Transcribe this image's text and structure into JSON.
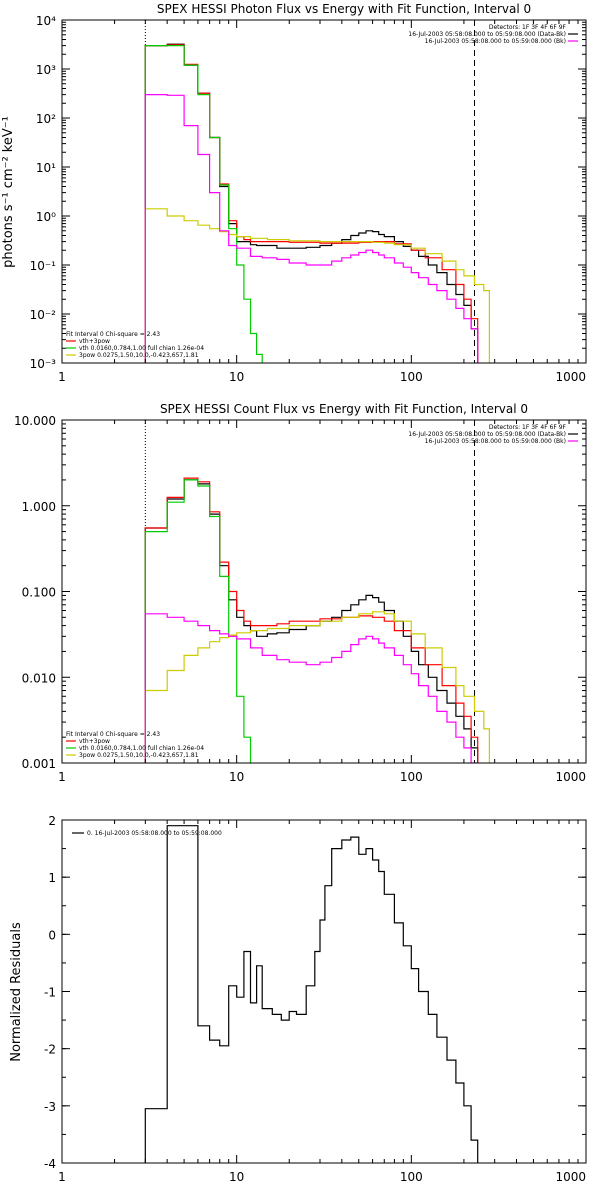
{
  "chart_data": [
    {
      "type": "line",
      "title": "SPEX HESSI Photon Flux vs Energy with Fit Function, Interval 0",
      "xlabel": "",
      "ylabel": "photons s⁻¹ cm⁻² keV⁻¹",
      "xscale": "log",
      "yscale": "log",
      "xlim": [
        1,
        1000
      ],
      "ylim": [
        0.001,
        10000
      ],
      "x_ticks": [
        1,
        10,
        100,
        1000
      ],
      "x_tick_labels": [
        "1",
        "10",
        "100",
        "1000"
      ],
      "y_ticks": [
        0.001,
        0.01,
        0.1,
        1,
        10,
        100,
        1000,
        10000
      ],
      "y_tick_labels": [
        "10⁻³",
        "10⁻²",
        "10⁻¹",
        "10⁰",
        "10¹",
        "10²",
        "10³",
        "10⁴"
      ],
      "vlines": [
        {
          "x": 3,
          "style": "dotted",
          "color": "#000000"
        },
        {
          "x": 230,
          "style": "dashed",
          "color": "#000000"
        }
      ],
      "legend_top_right": [
        {
          "text": "Detectors: 1F 3F 4F 6F 9F",
          "color": "#000000"
        },
        {
          "text": "16-Jul-2003 05:58:08.000 to 05:59:08.000 (Data-Bk)",
          "color": "#000000"
        },
        {
          "text": "16-Jul-2003 05:58:08.000 to 05:59:08.000 (Bk)",
          "color": "#ff00ff"
        }
      ],
      "legend_bottom_left": [
        {
          "text": "Fit Interval 0   Chi-square = 2.43",
          "color": "#000000"
        },
        {
          "text": "vth+3pow",
          "color": "#ff0000"
        },
        {
          "text": "vth 0.0160,0.784,1.00  full chian 1.26e-04",
          "color": "#00cc00"
        },
        {
          "text": "3pow 0.0275,1.50,10.0,-0.423,657,1.81",
          "color": "#cccc00"
        }
      ],
      "series": [
        {
          "name": "Data-Bk",
          "color": "#000000",
          "x": [
            3,
            4,
            5,
            6,
            7,
            8,
            9,
            10,
            11,
            12,
            13,
            15,
            17,
            20,
            25,
            30,
            35,
            40,
            45,
            50,
            55,
            60,
            65,
            70,
            80,
            90,
            100,
            110,
            125,
            140,
            160,
            180,
            200,
            220,
            240
          ],
          "y": [
            3000,
            3200,
            1200,
            320,
            40,
            4,
            0.7,
            0.3,
            0.3,
            0.26,
            0.25,
            0.25,
            0.22,
            0.22,
            0.23,
            0.25,
            0.28,
            0.33,
            0.4,
            0.45,
            0.5,
            0.48,
            0.42,
            0.38,
            0.3,
            0.24,
            0.2,
            0.15,
            0.1,
            0.07,
            0.04,
            0.025,
            0.015,
            0.005,
            0.001
          ]
        },
        {
          "name": "vth+3pow",
          "color": "#ff0000",
          "x": [
            3,
            4,
            5,
            6,
            7,
            8,
            9,
            10,
            11,
            12,
            14,
            17,
            20,
            30,
            40,
            50,
            60,
            70,
            80,
            100,
            120,
            150,
            180,
            200,
            220,
            240
          ],
          "y": [
            3000,
            3100,
            1250,
            320,
            40,
            4.5,
            0.8,
            0.38,
            0.33,
            0.3,
            0.3,
            0.3,
            0.29,
            0.28,
            0.28,
            0.29,
            0.3,
            0.3,
            0.27,
            0.2,
            0.14,
            0.08,
            0.04,
            0.02,
            0.008,
            0.001
          ]
        },
        {
          "name": "vth",
          "color": "#00cc00",
          "x": [
            3,
            4,
            5,
            6,
            7,
            8,
            9,
            10,
            11,
            12,
            13,
            14
          ],
          "y": [
            3000,
            3000,
            1200,
            300,
            40,
            4.3,
            0.55,
            0.1,
            0.02,
            0.004,
            0.0015,
            0.001
          ]
        },
        {
          "name": "3pow",
          "color": "#cccc00",
          "x": [
            3,
            4,
            5,
            6,
            7,
            8,
            9,
            10,
            12,
            15,
            20,
            30,
            40,
            50,
            60,
            70,
            80,
            100,
            120,
            150,
            180,
            200,
            230,
            260,
            280
          ],
          "y": [
            1.4,
            1.0,
            0.8,
            0.65,
            0.55,
            0.48,
            0.42,
            0.38,
            0.35,
            0.33,
            0.31,
            0.3,
            0.3,
            0.3,
            0.29,
            0.28,
            0.26,
            0.22,
            0.17,
            0.12,
            0.08,
            0.06,
            0.04,
            0.03,
            0.001
          ]
        },
        {
          "name": "Bk",
          "color": "#ff00ff",
          "x": [
            3,
            4,
            5,
            6,
            7,
            8,
            9,
            10,
            12,
            14,
            17,
            20,
            25,
            30,
            35,
            40,
            45,
            50,
            55,
            60,
            65,
            70,
            80,
            90,
            100,
            110,
            125,
            140,
            160,
            180,
            200,
            220,
            240
          ],
          "y": [
            300,
            290,
            70,
            18,
            3,
            0.5,
            0.25,
            0.22,
            0.15,
            0.14,
            0.13,
            0.11,
            0.1,
            0.1,
            0.12,
            0.14,
            0.16,
            0.18,
            0.2,
            0.18,
            0.16,
            0.14,
            0.11,
            0.09,
            0.07,
            0.055,
            0.04,
            0.03,
            0.02,
            0.013,
            0.008,
            0.005,
            0.001
          ]
        }
      ]
    },
    {
      "type": "line",
      "title": "SPEX HESSI Count Flux vs Energy with Fit Function, Interval 0",
      "xlabel": "",
      "ylabel": "",
      "xscale": "log",
      "yscale": "log",
      "xlim": [
        1,
        1000
      ],
      "ylim": [
        0.001,
        10
      ],
      "x_ticks": [
        1,
        10,
        100,
        1000
      ],
      "x_tick_labels": [
        "1",
        "10",
        "100",
        "1000"
      ],
      "y_ticks": [
        0.001,
        0.01,
        0.1,
        1,
        10
      ],
      "y_tick_labels": [
        "0.001",
        "0.010",
        "0.100",
        "1.000",
        "10.000"
      ],
      "vlines": [
        {
          "x": 3,
          "style": "dotted",
          "color": "#000000"
        },
        {
          "x": 230,
          "style": "dashed",
          "color": "#000000"
        }
      ],
      "legend_top_right": [
        {
          "text": "Detectors: 1F 3F 4F 6F 9F",
          "color": "#000000"
        },
        {
          "text": "16-Jul-2003 05:58:08.000 to 05:59:08.000 (Data-Bk)",
          "color": "#000000"
        },
        {
          "text": "16-Jul-2003 05:58:08.000 to 05:59:08.000 (Bk)",
          "color": "#ff00ff"
        }
      ],
      "legend_bottom_left": [
        {
          "text": "Fit Interval 0   Chi-square = 2.43",
          "color": "#000000"
        },
        {
          "text": "vth+3pow",
          "color": "#ff0000"
        },
        {
          "text": "vth 0.0160,0.784,1.00  full chian 1.26e-04",
          "color": "#00cc00"
        },
        {
          "text": "3pow 0.0275,1.50,10.0,-0.423,657,1.81",
          "color": "#cccc00"
        }
      ],
      "series": [
        {
          "name": "Data-Bk",
          "color": "#000000",
          "x": [
            3,
            4,
            5,
            6,
            7,
            8,
            9,
            10,
            11,
            12,
            13,
            15,
            17,
            20,
            25,
            30,
            35,
            40,
            45,
            50,
            55,
            60,
            65,
            70,
            80,
            90,
            100,
            110,
            125,
            140,
            160,
            180,
            200,
            220,
            240
          ],
          "y": [
            0.55,
            1.2,
            2.0,
            1.8,
            0.8,
            0.2,
            0.08,
            0.05,
            0.04,
            0.035,
            0.03,
            0.032,
            0.033,
            0.036,
            0.04,
            0.045,
            0.05,
            0.06,
            0.07,
            0.08,
            0.09,
            0.085,
            0.075,
            0.06,
            0.045,
            0.03,
            0.02,
            0.014,
            0.01,
            0.007,
            0.005,
            0.0035,
            0.0025,
            0.0015,
            0.001
          ]
        },
        {
          "name": "vth+3pow",
          "color": "#ff0000",
          "x": [
            3,
            4,
            5,
            6,
            7,
            8,
            9,
            10,
            11,
            12,
            14,
            17,
            20,
            30,
            40,
            50,
            60,
            70,
            80,
            100,
            120,
            150,
            180,
            200,
            220,
            240
          ],
          "y": [
            0.55,
            1.25,
            2.1,
            1.9,
            0.85,
            0.22,
            0.1,
            0.06,
            0.045,
            0.04,
            0.04,
            0.042,
            0.045,
            0.048,
            0.05,
            0.052,
            0.05,
            0.045,
            0.035,
            0.022,
            0.014,
            0.008,
            0.005,
            0.0035,
            0.002,
            0.001
          ]
        },
        {
          "name": "vth",
          "color": "#00cc00",
          "x": [
            3,
            4,
            5,
            6,
            7,
            8,
            9,
            10,
            11,
            12
          ],
          "y": [
            0.5,
            1.1,
            2.0,
            1.7,
            0.75,
            0.15,
            0.03,
            0.006,
            0.002,
            0.001
          ]
        },
        {
          "name": "3pow",
          "color": "#cccc00",
          "x": [
            3,
            4,
            5,
            6,
            7,
            8,
            9,
            10,
            12,
            15,
            20,
            30,
            40,
            50,
            60,
            70,
            80,
            100,
            120,
            150,
            180,
            200,
            230,
            260,
            280
          ],
          "y": [
            0.007,
            0.012,
            0.018,
            0.022,
            0.026,
            0.029,
            0.031,
            0.033,
            0.035,
            0.037,
            0.04,
            0.045,
            0.05,
            0.055,
            0.058,
            0.055,
            0.045,
            0.032,
            0.022,
            0.013,
            0.008,
            0.006,
            0.004,
            0.0025,
            0.001
          ]
        },
        {
          "name": "Bk",
          "color": "#ff00ff",
          "x": [
            3,
            4,
            5,
            6,
            7,
            8,
            9,
            10,
            12,
            14,
            17,
            20,
            25,
            30,
            35,
            40,
            45,
            50,
            55,
            60,
            65,
            70,
            80,
            90,
            100,
            110,
            125,
            140,
            160,
            180,
            200,
            220,
            240
          ],
          "y": [
            0.055,
            0.05,
            0.045,
            0.04,
            0.035,
            0.032,
            0.03,
            0.028,
            0.022,
            0.018,
            0.016,
            0.015,
            0.014,
            0.015,
            0.017,
            0.02,
            0.024,
            0.028,
            0.03,
            0.028,
            0.025,
            0.022,
            0.018,
            0.014,
            0.011,
            0.008,
            0.006,
            0.004,
            0.003,
            0.002,
            0.0015,
            0.001,
            0.001
          ]
        }
      ]
    },
    {
      "type": "line",
      "title": "",
      "xlabel": "",
      "ylabel": "Normalized Residuals",
      "xscale": "log",
      "yscale": "linear",
      "xlim": [
        1,
        1000
      ],
      "ylim": [
        -4,
        2
      ],
      "x_ticks": [
        1,
        10,
        100,
        1000
      ],
      "x_tick_labels": [
        "1",
        "10",
        "100",
        "1000"
      ],
      "y_ticks": [
        -4,
        -3,
        -2,
        -1,
        0,
        1,
        2
      ],
      "y_tick_labels": [
        "-4",
        "-3",
        "-2",
        "-1",
        "0",
        "1",
        "2"
      ],
      "legend_top_left": [
        {
          "text": "0. 16-Jul-2003 05:58:08.000 to 05:59:08.000",
          "color": "#000000"
        }
      ],
      "series": [
        {
          "name": "0. 16-Jul-2003 05:58:08.000 to 05:59:08.000",
          "color": "#000000",
          "x": [
            3,
            4,
            5,
            6,
            7,
            8,
            9,
            10,
            11,
            12,
            13,
            14,
            16,
            18,
            20,
            22,
            25,
            28,
            30,
            32,
            35,
            40,
            45,
            50,
            55,
            60,
            65,
            70,
            80,
            90,
            100,
            110,
            125,
            140,
            160,
            180,
            200,
            220,
            240
          ],
          "y": [
            -3.05,
            1.9,
            1.9,
            -1.6,
            -1.85,
            -1.95,
            -0.9,
            -1.1,
            -0.3,
            -1.2,
            -0.55,
            -1.3,
            -1.4,
            -1.5,
            -1.35,
            -1.4,
            -0.9,
            -0.3,
            0.25,
            0.85,
            1.5,
            1.65,
            1.7,
            1.4,
            1.5,
            1.3,
            1.1,
            0.7,
            0.2,
            -0.2,
            -0.6,
            -1.0,
            -1.4,
            -1.8,
            -2.2,
            -2.6,
            -3.0,
            -3.6,
            -4.0
          ]
        }
      ]
    }
  ]
}
